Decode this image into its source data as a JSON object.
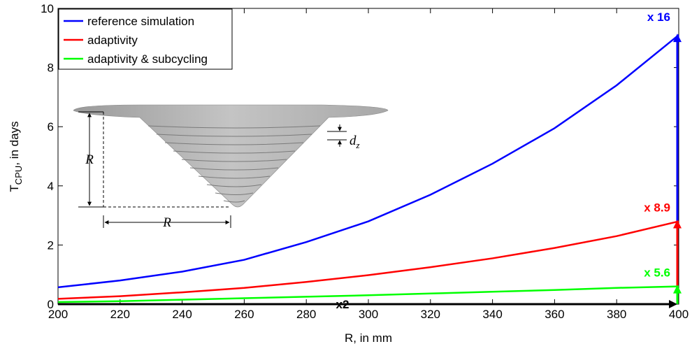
{
  "chart_data": {
    "type": "line",
    "xlabel": "R, in mm",
    "ylabel": "T",
    "ylabel_subscript": "CPU",
    "ylabel_suffix": ", in days",
    "x": [
      200,
      220,
      240,
      260,
      280,
      300,
      320,
      340,
      360,
      380,
      400
    ],
    "series": [
      {
        "name": "reference simulation",
        "color": "#0000ff",
        "values": [
          0.57,
          0.8,
          1.1,
          1.5,
          2.1,
          2.8,
          3.7,
          4.75,
          5.95,
          7.4,
          9.1
        ]
      },
      {
        "name": "adaptivity",
        "color": "#ff0000",
        "values": [
          0.18,
          0.27,
          0.4,
          0.55,
          0.75,
          0.98,
          1.25,
          1.55,
          1.9,
          2.3,
          2.8
        ]
      },
      {
        "name": "adaptivity & subcycling",
        "color": "#00ff00",
        "values": [
          0.07,
          0.1,
          0.15,
          0.2,
          0.25,
          0.3,
          0.36,
          0.42,
          0.48,
          0.55,
          0.6
        ]
      }
    ],
    "xlim": [
      200,
      400
    ],
    "ylim": [
      0,
      10
    ],
    "xticks": [
      200,
      220,
      240,
      260,
      280,
      300,
      320,
      340,
      360,
      380,
      400
    ],
    "yticks": [
      0,
      2,
      4,
      6,
      8,
      10
    ],
    "legend": "upper left",
    "annotations": [
      {
        "text": "x 16",
        "series": 0
      },
      {
        "text": "x 8.9",
        "series": 1
      },
      {
        "text": "x 5.6",
        "series": 2
      },
      {
        "text": "x2"
      }
    ],
    "inset": {
      "vertical_label": "R",
      "horizontal_label": "R",
      "thickness_label": "d",
      "thickness_subscript": "z"
    }
  }
}
